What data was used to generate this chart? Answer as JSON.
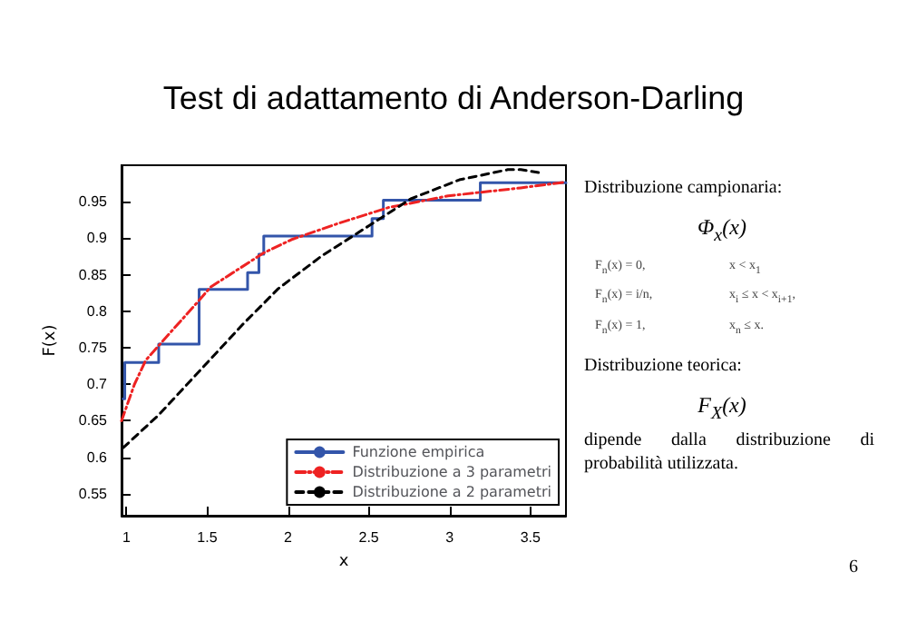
{
  "chart_data": {
    "type": "line",
    "title": "Test di adattamento di Anderson-Darling",
    "xlabel": "x",
    "ylabel": "F(x)",
    "xlim": [
      0.97,
      3.72
    ],
    "xticks": [
      1,
      1.5,
      2,
      2.5,
      3,
      3.5
    ],
    "ylim": [
      0.52,
      1.0
    ],
    "yticks": [
      0.55,
      0.6,
      0.65,
      0.7,
      0.75,
      0.8,
      0.85,
      0.9,
      0.95
    ],
    "grid": false,
    "legend": "bottom right",
    "marker": "none",
    "series": [
      {
        "name": "Funzione empirica",
        "type": "step",
        "color": "#3355aa",
        "line_style": "solid",
        "x": [
          0.98,
          0.99,
          1.2,
          1.45,
          1.75,
          1.82,
          1.85,
          2.52,
          2.59,
          3.19,
          3.72
        ],
        "values": [
          0.68,
          0.73,
          0.755,
          0.83,
          0.853,
          0.878,
          0.903,
          0.927,
          0.952,
          0.976,
          0.976
        ]
      },
      {
        "name": "Distribuzione a 3 parametri",
        "type": "line",
        "color": "#ee2222",
        "line_style": "dashdot",
        "x": [
          0.97,
          1.05,
          1.12,
          1.2,
          1.45,
          1.52,
          1.85,
          2.02,
          2.32,
          2.62,
          2.99,
          3.44,
          3.72
        ],
        "values": [
          0.65,
          0.7,
          0.733,
          0.753,
          0.815,
          0.833,
          0.88,
          0.898,
          0.921,
          0.942,
          0.958,
          0.969,
          0.977
        ]
      },
      {
        "name": "Distribuzione a 2 parametri",
        "type": "line",
        "color": "#000000",
        "line_style": "dashed",
        "x": [
          0.98,
          1.2,
          1.46,
          1.72,
          1.94,
          2.21,
          2.5,
          2.76,
          3.06,
          3.36,
          3.44,
          3.55
        ],
        "values": [
          0.613,
          0.658,
          0.72,
          0.782,
          0.831,
          0.876,
          0.917,
          0.954,
          0.98,
          0.994,
          0.994,
          0.99
        ]
      }
    ],
    "annotations": [
      "Distribuzione campionaria:",
      "Φ$_{x}$(x)",
      "F$_{n}$(x) = 0,",
      "x < x$_{1}$",
      "F$_{n}$(x) = i/n,",
      "x$_{i}$ ≤ x < x$_{i+1}$,",
      "F$_{n}$(x) = 1,",
      "x$_{n}$ ≤ x.",
      "Distribuzione teorica:",
      "F$_{X}$(x)",
      "dipende dalla distribuzione di probabilità utilizzata.",
      "6"
    ]
  }
}
